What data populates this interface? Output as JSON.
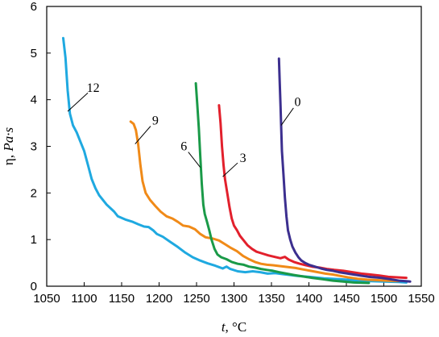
{
  "chart_data": {
    "type": "line",
    "xlabel": {
      "italic": "t",
      "rest": ", °C"
    },
    "ylabel": {
      "plain": "η, ",
      "italic": "Pa·s"
    },
    "xlim": [
      1050,
      1550
    ],
    "ylim": [
      0,
      6
    ],
    "xticks": [
      1050,
      1100,
      1150,
      1200,
      1250,
      1300,
      1350,
      1400,
      1450,
      1500,
      1550
    ],
    "yticks": [
      0,
      1,
      2,
      3,
      4,
      5,
      6
    ],
    "grid": false,
    "legend": "none",
    "series": [
      {
        "name": "12",
        "color": "#1fa9e0",
        "label_anchor": [
          1078,
          3.75
        ],
        "label_pos": [
          1112,
          4.25
        ],
        "points": [
          [
            1072,
            5.32
          ],
          [
            1075,
            4.9
          ],
          [
            1078,
            4.2
          ],
          [
            1081,
            3.7
          ],
          [
            1085,
            3.45
          ],
          [
            1090,
            3.3
          ],
          [
            1095,
            3.1
          ],
          [
            1100,
            2.9
          ],
          [
            1105,
            2.6
          ],
          [
            1110,
            2.3
          ],
          [
            1115,
            2.1
          ],
          [
            1120,
            1.95
          ],
          [
            1130,
            1.75
          ],
          [
            1140,
            1.6
          ],
          [
            1145,
            1.5
          ],
          [
            1155,
            1.43
          ],
          [
            1165,
            1.38
          ],
          [
            1172,
            1.33
          ],
          [
            1180,
            1.28
          ],
          [
            1186,
            1.27
          ],
          [
            1192,
            1.2
          ],
          [
            1197,
            1.12
          ],
          [
            1205,
            1.06
          ],
          [
            1215,
            0.95
          ],
          [
            1225,
            0.84
          ],
          [
            1235,
            0.72
          ],
          [
            1245,
            0.62
          ],
          [
            1255,
            0.55
          ],
          [
            1265,
            0.49
          ],
          [
            1275,
            0.44
          ],
          [
            1280,
            0.41
          ],
          [
            1285,
            0.38
          ],
          [
            1290,
            0.42
          ],
          [
            1295,
            0.37
          ],
          [
            1305,
            0.32
          ],
          [
            1315,
            0.3
          ],
          [
            1325,
            0.32
          ],
          [
            1335,
            0.3
          ],
          [
            1345,
            0.27
          ],
          [
            1355,
            0.28
          ],
          [
            1365,
            0.26
          ],
          [
            1375,
            0.24
          ],
          [
            1385,
            0.22
          ],
          [
            1400,
            0.2
          ],
          [
            1420,
            0.17
          ],
          [
            1440,
            0.15
          ],
          [
            1460,
            0.13
          ],
          [
            1480,
            0.11
          ],
          [
            1500,
            0.1
          ],
          [
            1520,
            0.09
          ],
          [
            1530,
            0.08
          ]
        ]
      },
      {
        "name": "9",
        "color": "#f08a18",
        "label_anchor": [
          1168,
          3.05
        ],
        "label_pos": [
          1195,
          3.55
        ],
        "points": [
          [
            1162,
            3.53
          ],
          [
            1166,
            3.48
          ],
          [
            1169,
            3.35
          ],
          [
            1172,
            3.05
          ],
          [
            1175,
            2.6
          ],
          [
            1178,
            2.25
          ],
          [
            1182,
            2.0
          ],
          [
            1188,
            1.85
          ],
          [
            1195,
            1.72
          ],
          [
            1202,
            1.6
          ],
          [
            1210,
            1.5
          ],
          [
            1218,
            1.45
          ],
          [
            1225,
            1.38
          ],
          [
            1232,
            1.3
          ],
          [
            1240,
            1.28
          ],
          [
            1248,
            1.22
          ],
          [
            1255,
            1.12
          ],
          [
            1262,
            1.05
          ],
          [
            1272,
            1.02
          ],
          [
            1280,
            0.98
          ],
          [
            1288,
            0.9
          ],
          [
            1296,
            0.82
          ],
          [
            1304,
            0.75
          ],
          [
            1312,
            0.65
          ],
          [
            1320,
            0.58
          ],
          [
            1328,
            0.52
          ],
          [
            1336,
            0.48
          ],
          [
            1344,
            0.46
          ],
          [
            1352,
            0.45
          ],
          [
            1362,
            0.43
          ],
          [
            1372,
            0.41
          ],
          [
            1382,
            0.39
          ],
          [
            1392,
            0.36
          ],
          [
            1402,
            0.33
          ],
          [
            1412,
            0.3
          ],
          [
            1422,
            0.27
          ],
          [
            1432,
            0.25
          ],
          [
            1442,
            0.22
          ],
          [
            1452,
            0.19
          ],
          [
            1465,
            0.16
          ],
          [
            1478,
            0.14
          ],
          [
            1492,
            0.13
          ],
          [
            1505,
            0.12
          ],
          [
            1520,
            0.11
          ]
        ]
      },
      {
        "name": "6",
        "color": "#1a9a48",
        "label_anchor": [
          1255,
          2.55
        ],
        "label_pos": [
          1233,
          3.0
        ],
        "points": [
          [
            1249,
            4.35
          ],
          [
            1251,
            3.9
          ],
          [
            1253,
            3.4
          ],
          [
            1255,
            2.8
          ],
          [
            1257,
            2.2
          ],
          [
            1259,
            1.75
          ],
          [
            1261,
            1.55
          ],
          [
            1264,
            1.38
          ],
          [
            1267,
            1.2
          ],
          [
            1270,
            1.0
          ],
          [
            1274,
            0.8
          ],
          [
            1278,
            0.68
          ],
          [
            1283,
            0.62
          ],
          [
            1290,
            0.58
          ],
          [
            1297,
            0.52
          ],
          [
            1305,
            0.48
          ],
          [
            1313,
            0.46
          ],
          [
            1320,
            0.42
          ],
          [
            1328,
            0.4
          ],
          [
            1336,
            0.37
          ],
          [
            1344,
            0.35
          ],
          [
            1352,
            0.33
          ],
          [
            1360,
            0.3
          ],
          [
            1370,
            0.27
          ],
          [
            1380,
            0.24
          ],
          [
            1392,
            0.21
          ],
          [
            1404,
            0.18
          ],
          [
            1418,
            0.15
          ],
          [
            1432,
            0.12
          ],
          [
            1446,
            0.1
          ],
          [
            1460,
            0.08
          ],
          [
            1480,
            0.07
          ]
        ]
      },
      {
        "name": "3",
        "color": "#e2202c",
        "label_anchor": [
          1285,
          2.35
        ],
        "label_pos": [
          1312,
          2.75
        ],
        "points": [
          [
            1280,
            3.88
          ],
          [
            1282,
            3.5
          ],
          [
            1284,
            3.0
          ],
          [
            1286,
            2.6
          ],
          [
            1288,
            2.3
          ],
          [
            1291,
            2.0
          ],
          [
            1294,
            1.7
          ],
          [
            1297,
            1.45
          ],
          [
            1300,
            1.3
          ],
          [
            1304,
            1.2
          ],
          [
            1308,
            1.08
          ],
          [
            1313,
            0.98
          ],
          [
            1318,
            0.88
          ],
          [
            1324,
            0.8
          ],
          [
            1330,
            0.74
          ],
          [
            1338,
            0.7
          ],
          [
            1346,
            0.66
          ],
          [
            1354,
            0.63
          ],
          [
            1362,
            0.6
          ],
          [
            1368,
            0.63
          ],
          [
            1373,
            0.57
          ],
          [
            1380,
            0.52
          ],
          [
            1388,
            0.48
          ],
          [
            1396,
            0.45
          ],
          [
            1404,
            0.42
          ],
          [
            1414,
            0.4
          ],
          [
            1424,
            0.37
          ],
          [
            1434,
            0.35
          ],
          [
            1446,
            0.33
          ],
          [
            1458,
            0.3
          ],
          [
            1470,
            0.27
          ],
          [
            1482,
            0.25
          ],
          [
            1494,
            0.23
          ],
          [
            1506,
            0.2
          ],
          [
            1518,
            0.19
          ],
          [
            1530,
            0.18
          ]
        ]
      },
      {
        "name": "0",
        "color": "#3c2f8f",
        "label_anchor": [
          1363,
          3.45
        ],
        "label_pos": [
          1385,
          3.95
        ],
        "points": [
          [
            1360,
            4.88
          ],
          [
            1361,
            4.4
          ],
          [
            1362,
            3.9
          ],
          [
            1363,
            3.4
          ],
          [
            1364,
            2.9
          ],
          [
            1366,
            2.4
          ],
          [
            1368,
            1.9
          ],
          [
            1370,
            1.5
          ],
          [
            1372,
            1.2
          ],
          [
            1375,
            1.0
          ],
          [
            1378,
            0.85
          ],
          [
            1382,
            0.72
          ],
          [
            1386,
            0.62
          ],
          [
            1390,
            0.55
          ],
          [
            1395,
            0.5
          ],
          [
            1400,
            0.46
          ],
          [
            1408,
            0.42
          ],
          [
            1416,
            0.38
          ],
          [
            1424,
            0.35
          ],
          [
            1432,
            0.33
          ],
          [
            1440,
            0.3
          ],
          [
            1448,
            0.28
          ],
          [
            1456,
            0.26
          ],
          [
            1464,
            0.24
          ],
          [
            1472,
            0.22
          ],
          [
            1480,
            0.2
          ],
          [
            1488,
            0.19
          ],
          [
            1496,
            0.18
          ],
          [
            1504,
            0.16
          ],
          [
            1512,
            0.14
          ],
          [
            1520,
            0.12
          ],
          [
            1528,
            0.11
          ],
          [
            1535,
            0.1
          ]
        ]
      }
    ]
  }
}
